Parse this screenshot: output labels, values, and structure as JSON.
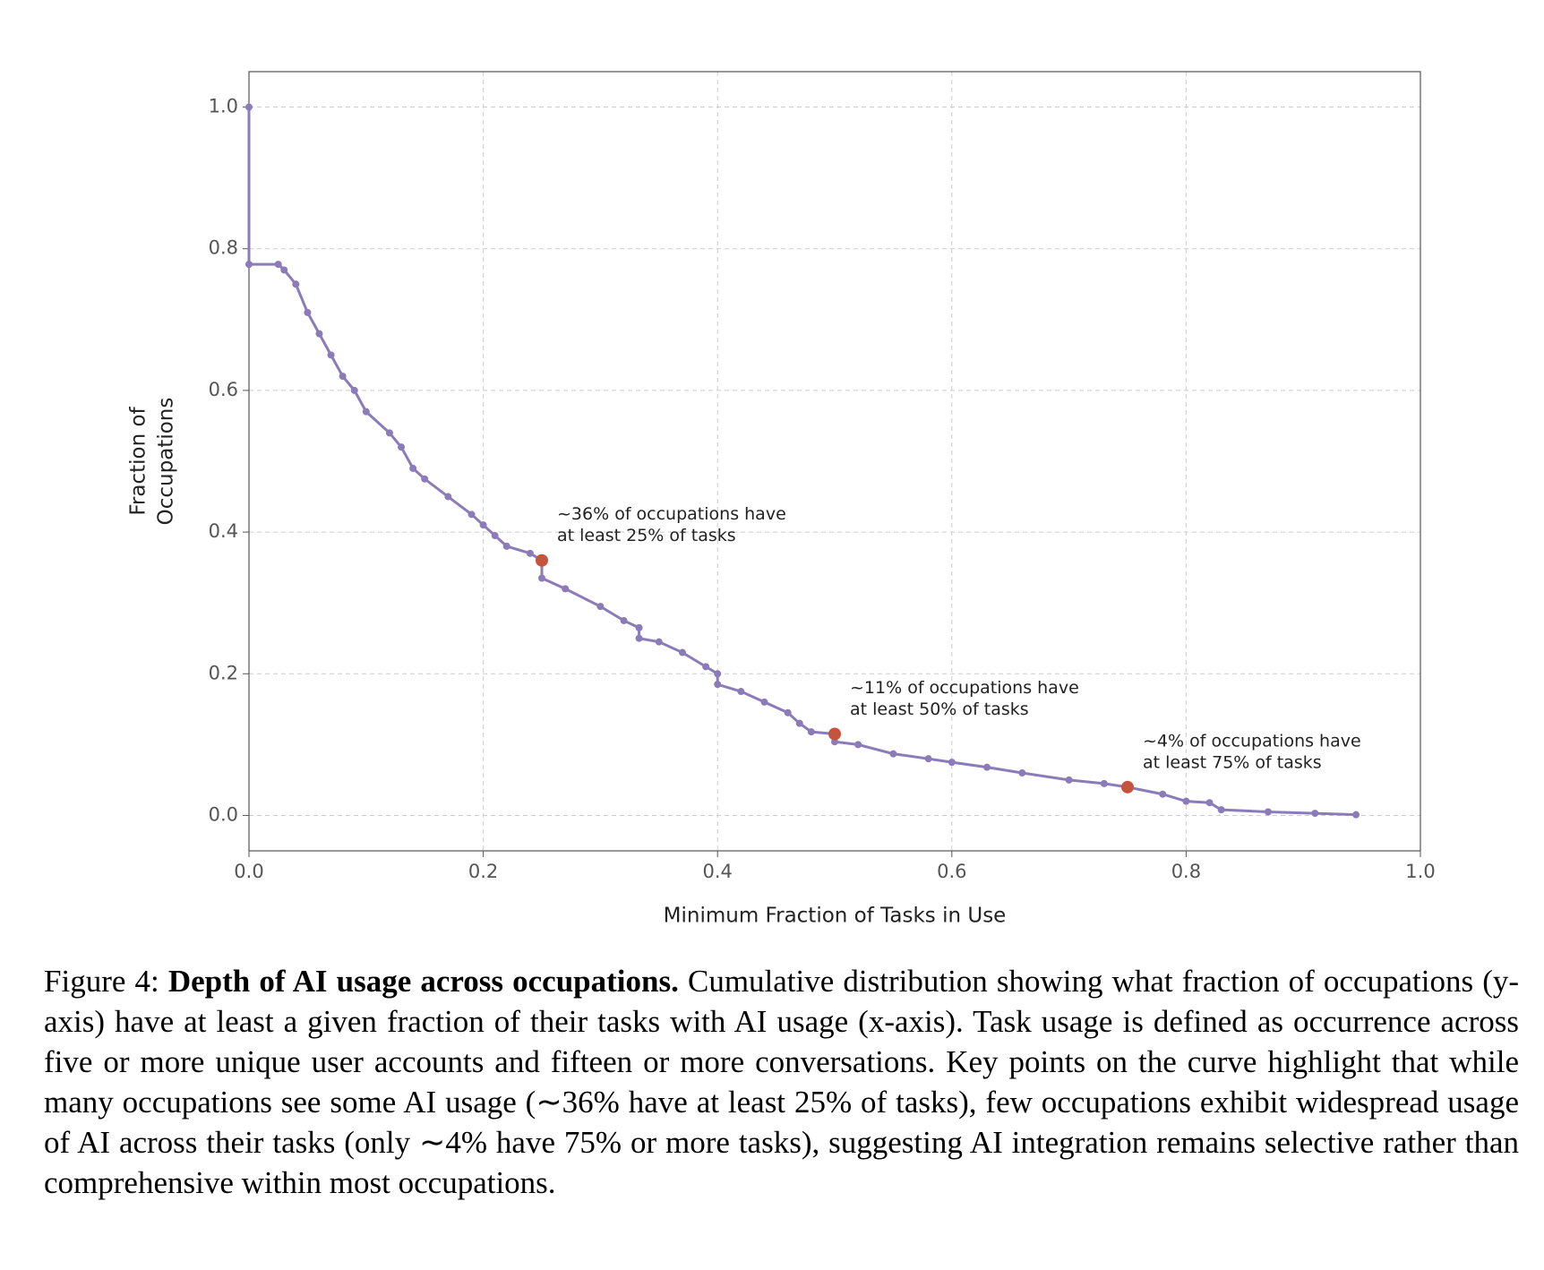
{
  "chart_data": {
    "type": "line",
    "xlabel": "Minimum Fraction of Tasks in Use",
    "ylabel": [
      "Fraction of",
      "Occupations"
    ],
    "xlim": [
      0,
      1
    ],
    "ylim": [
      -0.05,
      1.05
    ],
    "xticks": [
      {
        "value": 0,
        "label": "0.0"
      },
      0.2,
      0.4,
      0.6,
      0.8,
      {
        "value": 1,
        "label": "1.0"
      }
    ],
    "yticks": [
      {
        "value": 0,
        "label": "0.0"
      },
      0.2,
      0.4,
      0.6,
      0.8,
      {
        "value": 1,
        "label": "1.0"
      }
    ],
    "grid": true,
    "series": [
      {
        "color": "#8b7bb8",
        "x": [
          0,
          0,
          0.025,
          0.03,
          0.04,
          0.05,
          0.06,
          0.07,
          0.08,
          0.09,
          0.1,
          0.12,
          0.13,
          0.14,
          0.15,
          0.17,
          0.19,
          0.2,
          0.21,
          0.22,
          0.24,
          0.25,
          0.25,
          0.27,
          0.3,
          0.32,
          0.333,
          0.333,
          0.35,
          0.37,
          0.39,
          0.4,
          0.4,
          0.42,
          0.44,
          0.46,
          0.47,
          0.48,
          0.5,
          0.5,
          0.52,
          0.55,
          0.58,
          0.6,
          0.63,
          0.66,
          0.7,
          0.73,
          0.75,
          0.78,
          0.8,
          0.82,
          0.83,
          0.87,
          0.91,
          0.945
        ],
        "values": [
          1.0,
          0.778,
          0.778,
          0.77,
          0.75,
          0.71,
          0.68,
          0.65,
          0.62,
          0.6,
          0.57,
          0.54,
          0.52,
          0.49,
          0.475,
          0.45,
          0.425,
          0.41,
          0.395,
          0.38,
          0.37,
          0.36,
          0.335,
          0.32,
          0.295,
          0.275,
          0.265,
          0.25,
          0.245,
          0.23,
          0.21,
          0.2,
          0.185,
          0.175,
          0.16,
          0.145,
          0.13,
          0.118,
          0.115,
          0.104,
          0.1,
          0.087,
          0.08,
          0.075,
          0.068,
          0.06,
          0.05,
          0.045,
          0.04,
          0.03,
          0.02,
          0.018,
          0.008,
          0.005,
          0.003,
          0.001
        ]
      }
    ],
    "highlights": {
      "color": "#c4553c",
      "x": [
        0.25,
        0.5,
        0.75
      ],
      "values": [
        0.36,
        0.115,
        0.04
      ]
    },
    "annotations": [
      [
        "~36% of occupations have",
        "at least 25% of tasks"
      ],
      [
        "~11% of occupations have",
        "at least 50% of tasks"
      ],
      [
        "~4% of occupations have",
        "at least 75% of tasks"
      ]
    ]
  },
  "caption": {
    "label": "Figure 4:",
    "bold": "Depth of AI usage across occupations.",
    "text": "Cumulative distribution showing what fraction of occupations (y-axis) have at least a given fraction of their tasks with AI usage (x-axis). Task usage is defined as occurrence across five or more unique user accounts and fifteen or more conversations. Key points on the curve highlight that while many occupations see some AI usage (∼36% have at least 25% of tasks), few occupations exhibit widespread usage of AI across their tasks (only ∼4% have 75% or more tasks), suggesting AI integration remains selective rather than comprehensive within most occupations."
  }
}
